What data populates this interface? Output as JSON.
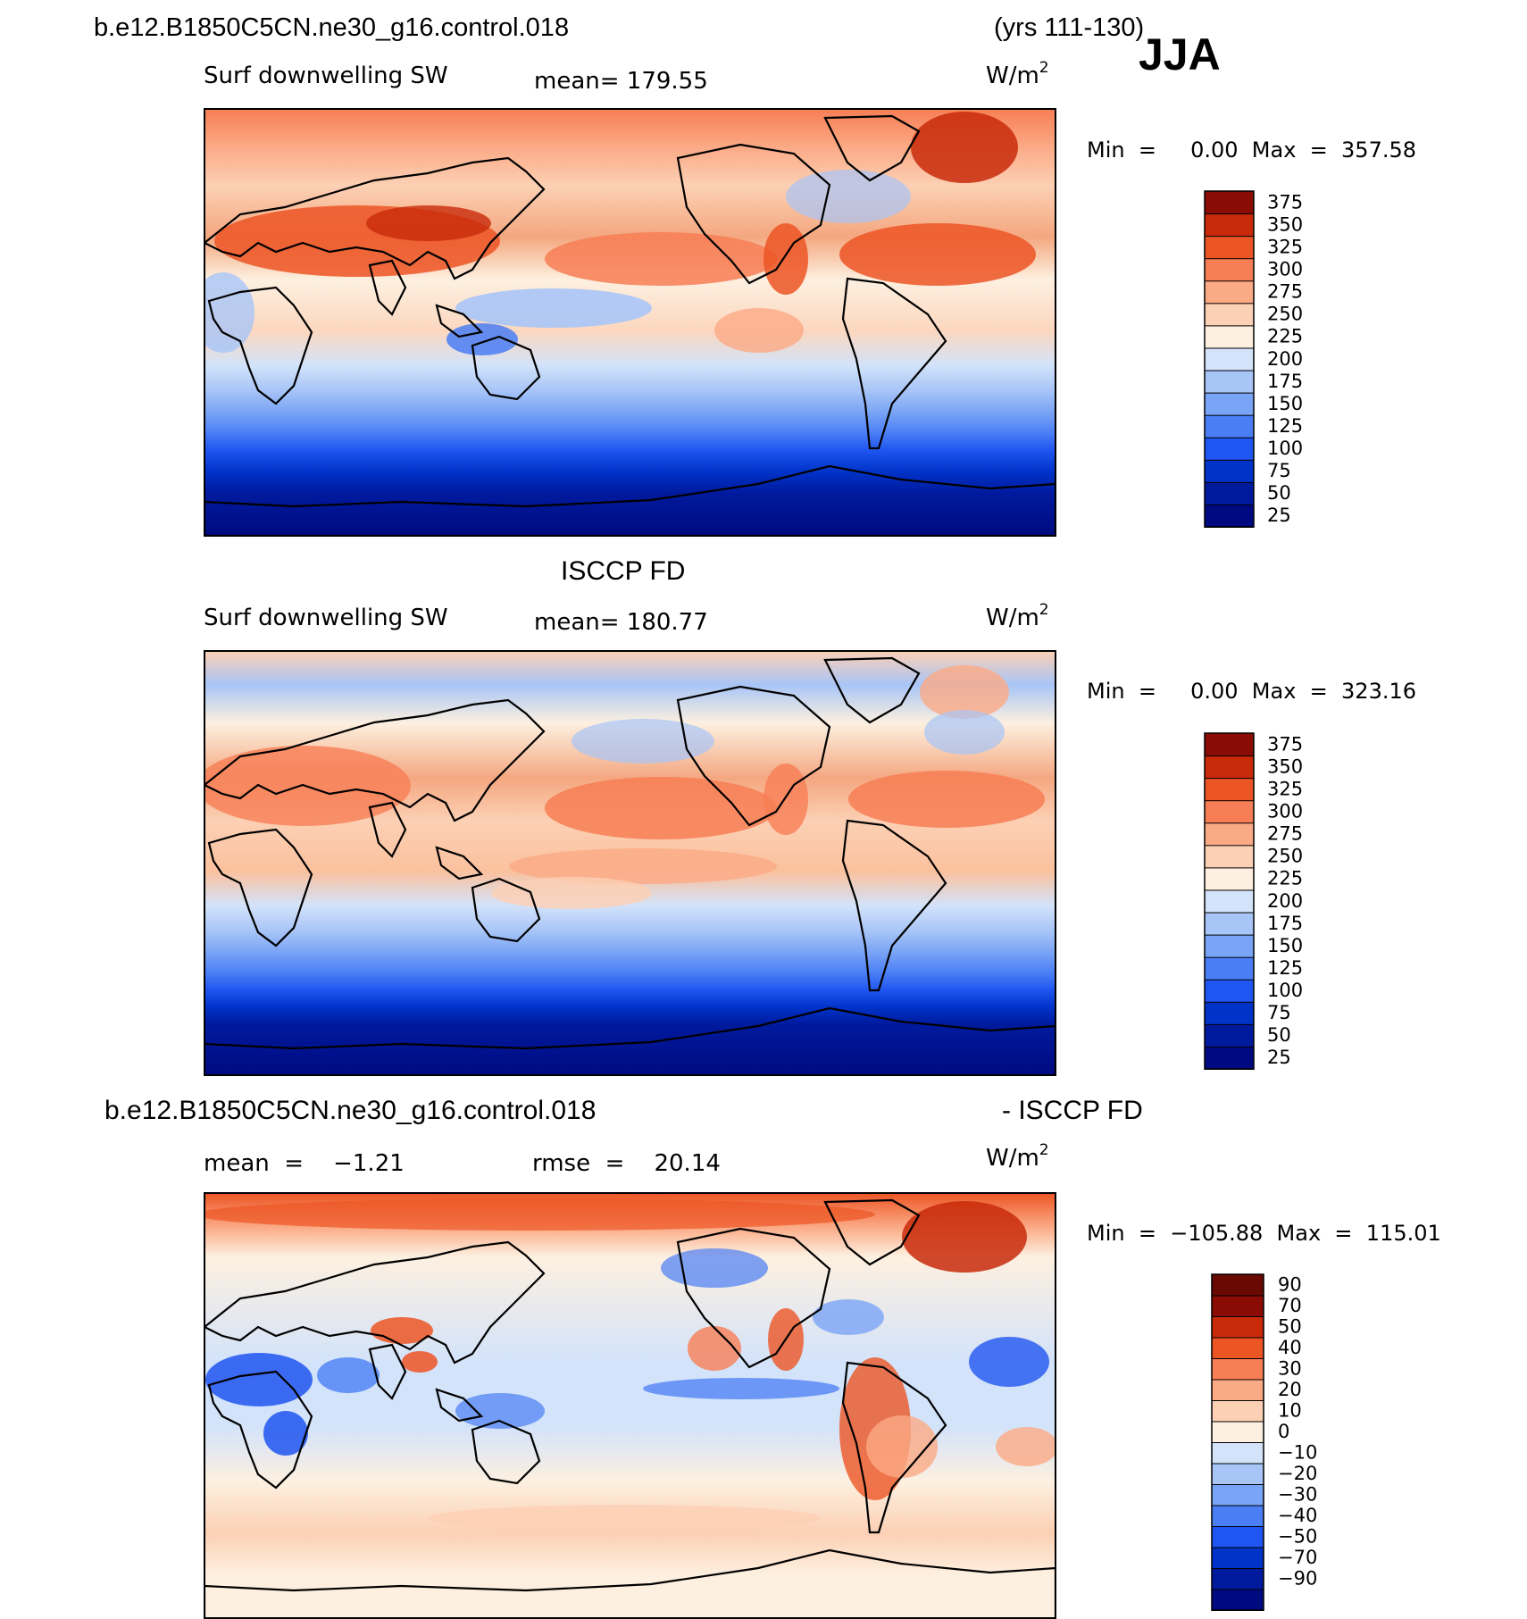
{
  "header": {
    "case_name": "b.e12.B1850C5CN.ne30_g16.control.018",
    "years": "(yrs 111-130)",
    "season": "JJA"
  },
  "chart_data": [
    {
      "type": "heatmap",
      "id": "panel-model",
      "title": "b.e12.B1850C5CN.ne30_g16.control.018",
      "variable_label": "Surf downwelling SW",
      "stat_text": "mean=  179.55",
      "units_base": "W/m",
      "units_exp": "2",
      "minmax_text": "Min  =     0.00  Max  =  357.58",
      "colorbar": {
        "levels": [
          25,
          50,
          75,
          100,
          125,
          150,
          175,
          200,
          225,
          250,
          275,
          300,
          325,
          350,
          375
        ],
        "level_labels": [
          "375",
          "350",
          "325",
          "300",
          "275",
          "250",
          "225",
          "200",
          "175",
          "150",
          "125",
          "100",
          "75",
          "50",
          "25"
        ],
        "colors": [
          "#000a80",
          "#001a9e",
          "#0033c8",
          "#1f55f0",
          "#4a7ef5",
          "#7aa4f5",
          "#a8c5f7",
          "#d3e3fa",
          "#fdf0e0",
          "#fcd0b4",
          "#fbaa86",
          "#f77e55",
          "#ec5524",
          "#c82a0a",
          "#8a0c04"
        ]
      }
    },
    {
      "type": "heatmap",
      "id": "panel-obs",
      "title": "ISCCP FD",
      "variable_label": "Surf downwelling SW",
      "stat_text": "mean=  180.77",
      "units_base": "W/m",
      "units_exp": "2",
      "minmax_text": "Min  =     0.00  Max  =  323.16",
      "colorbar": {
        "levels": [
          25,
          50,
          75,
          100,
          125,
          150,
          175,
          200,
          225,
          250,
          275,
          300,
          325,
          350,
          375
        ],
        "level_labels": [
          "375",
          "350",
          "325",
          "300",
          "275",
          "250",
          "225",
          "200",
          "175",
          "150",
          "125",
          "100",
          "75",
          "50",
          "25"
        ],
        "colors": [
          "#000a80",
          "#001a9e",
          "#0033c8",
          "#1f55f0",
          "#4a7ef5",
          "#7aa4f5",
          "#a8c5f7",
          "#d3e3fa",
          "#fdf0e0",
          "#fcd0b4",
          "#fbaa86",
          "#f77e55",
          "#ec5524",
          "#c82a0a",
          "#8a0c04"
        ]
      }
    },
    {
      "type": "heatmap",
      "id": "panel-diff",
      "title_left": "b.e12.B1850C5CN.ne30_g16.control.018",
      "title_right": "- ISCCP FD",
      "mean_text": "mean  =    −1.21",
      "rmse_text": "rmse  =    20.14",
      "units_base": "W/m",
      "units_exp": "2",
      "minmax_text": "Min  =  −105.88  Max  =  115.01",
      "colorbar": {
        "levels": [
          -90,
          -70,
          -50,
          -40,
          -30,
          -20,
          -10,
          0,
          10,
          20,
          30,
          40,
          50,
          70,
          90
        ],
        "level_labels": [
          "90",
          "70",
          "50",
          "40",
          "30",
          "20",
          "10",
          "0",
          "−10",
          "−20",
          "−30",
          "−40",
          "−50",
          "−70",
          "−90"
        ],
        "colors": [
          "#000a80",
          "#001a9e",
          "#0033c8",
          "#1f55f0",
          "#4a7ef5",
          "#7aa4f5",
          "#a8c5f7",
          "#d3e3fa",
          "#fdf0e0",
          "#fcd0b4",
          "#fbaa86",
          "#f77e55",
          "#ec5524",
          "#c82a0a",
          "#8a0c04",
          "#6a0802"
        ]
      }
    }
  ]
}
